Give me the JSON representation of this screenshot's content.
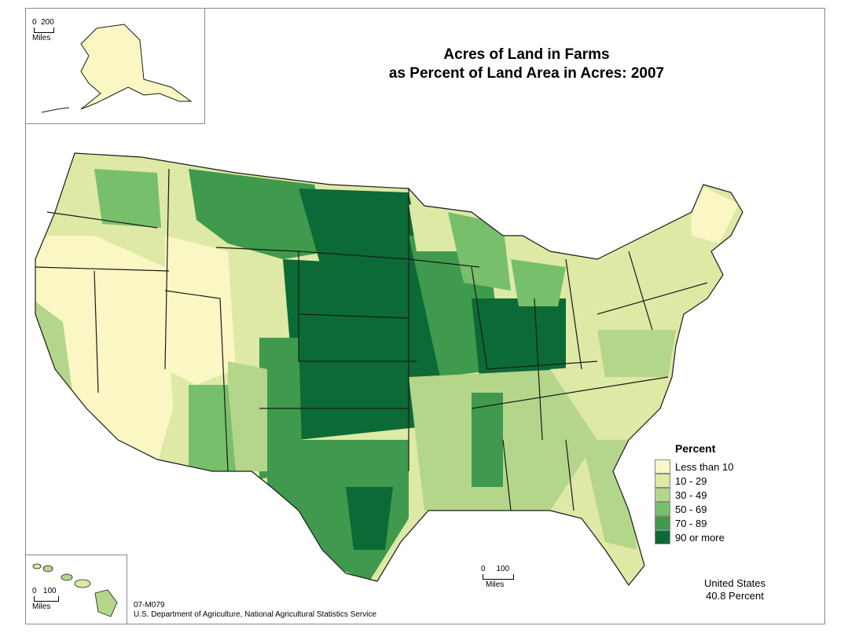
{
  "title": {
    "line1": "Acres of Land in Farms",
    "line2": "as Percent of Land Area in Acres:  2007"
  },
  "legend": {
    "title": "Percent",
    "classes": [
      {
        "label": "Less than 10",
        "color": "#fbf7c4"
      },
      {
        "label": "10 - 29",
        "color": "#dde9a5"
      },
      {
        "label": "30 - 49",
        "color": "#b4d68a"
      },
      {
        "label": "50 - 69",
        "color": "#78bf6c"
      },
      {
        "label": "70 - 89",
        "color": "#3f9a4d"
      },
      {
        "label": "90 or more",
        "color": "#0c6a36"
      }
    ]
  },
  "scales": {
    "alaska": {
      "min": "0",
      "max": "200",
      "unit": "Miles"
    },
    "hawaii": {
      "min": "0",
      "max": "100",
      "unit": "Miles"
    },
    "conus": {
      "min": "0",
      "max": "100",
      "unit": "Miles"
    }
  },
  "us_total": {
    "line1": "United States",
    "line2": "40.8 Percent"
  },
  "credits": {
    "map_id": "07-M079",
    "source": "U.S. Department of Agriculture, National Agricultural Statistics Service"
  },
  "colors": {
    "border": "#8a8a8a",
    "state_line": "#1a1a1a"
  }
}
